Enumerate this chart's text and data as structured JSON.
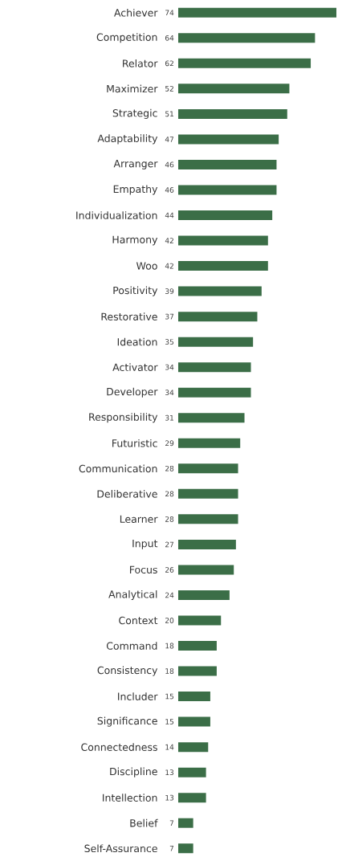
{
  "chart_data": {
    "type": "bar",
    "orientation": "horizontal",
    "data_labels": true,
    "color": "#3b6e47",
    "categories": [
      "Achiever",
      "Competition",
      "Relator",
      "Maximizer",
      "Strategic",
      "Adaptability",
      "Arranger",
      "Empathy",
      "Individualization",
      "Harmony",
      "Woo",
      "Positivity",
      "Restorative",
      "Ideation",
      "Activator",
      "Developer",
      "Responsibility",
      "Futuristic",
      "Communication",
      "Deliberative",
      "Learner",
      "Input",
      "Focus",
      "Analytical",
      "Context",
      "Command",
      "Consistency",
      "Includer",
      "Significance",
      "Connectedness",
      "Discipline",
      "Intellection",
      "Belief",
      "Self-Assurance"
    ],
    "values": [
      74,
      64,
      62,
      52,
      51,
      47,
      46,
      46,
      44,
      42,
      42,
      39,
      37,
      35,
      34,
      34,
      31,
      29,
      28,
      28,
      28,
      27,
      26,
      24,
      20,
      18,
      18,
      15,
      15,
      14,
      13,
      13,
      7,
      7
    ]
  }
}
